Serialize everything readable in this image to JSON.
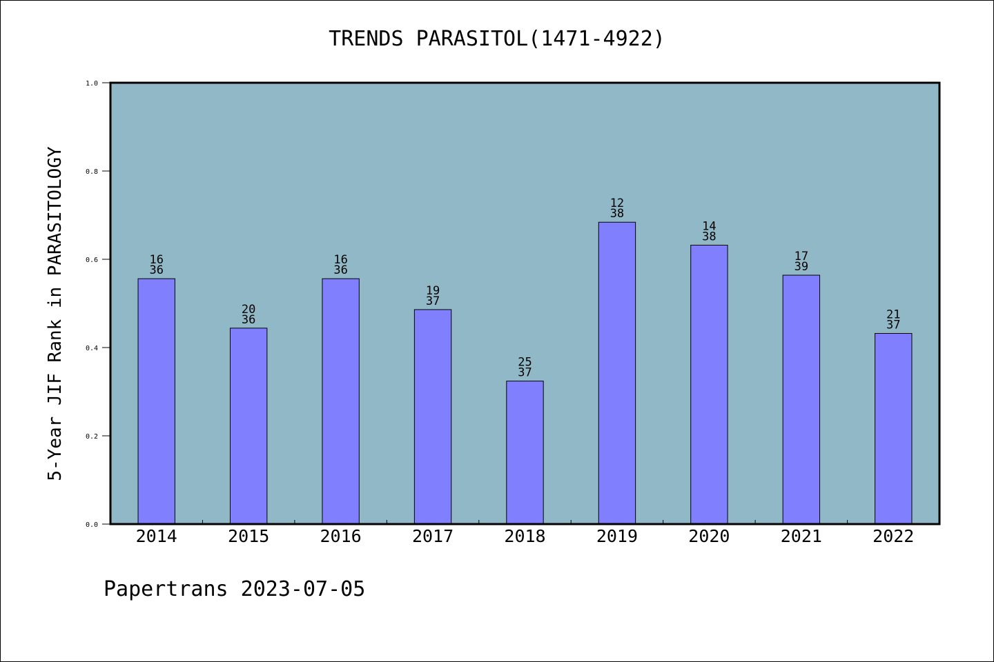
{
  "chart_data": {
    "type": "bar",
    "title": "TRENDS PARASITOL(1471-4922)",
    "ylabel": "5-Year JIF Rank in PARASITOLOGY",
    "xlabel": "",
    "categories": [
      "2014",
      "2015",
      "2016",
      "2017",
      "2018",
      "2019",
      "2020",
      "2021",
      "2022"
    ],
    "values": [
      0.556,
      0.444,
      0.556,
      0.486,
      0.324,
      0.684,
      0.632,
      0.564,
      0.432
    ],
    "bar_labels": [
      [
        "16",
        "36"
      ],
      [
        "20",
        "36"
      ],
      [
        "16",
        "36"
      ],
      [
        "19",
        "37"
      ],
      [
        "25",
        "37"
      ],
      [
        "12",
        "38"
      ],
      [
        "14",
        "38"
      ],
      [
        "17",
        "39"
      ],
      [
        "21",
        "37"
      ]
    ],
    "ylim": [
      0,
      1.0
    ],
    "yticks": [
      "0.0",
      "0.2",
      "0.4",
      "0.6",
      "0.8",
      "1.0"
    ],
    "grid": false,
    "legend": "none",
    "colors": {
      "bar": "#8080ff",
      "plot_bg": "#91b8c6",
      "axis": "#000000"
    }
  },
  "footer": {
    "caption": "Papertrans 2023-07-05"
  }
}
